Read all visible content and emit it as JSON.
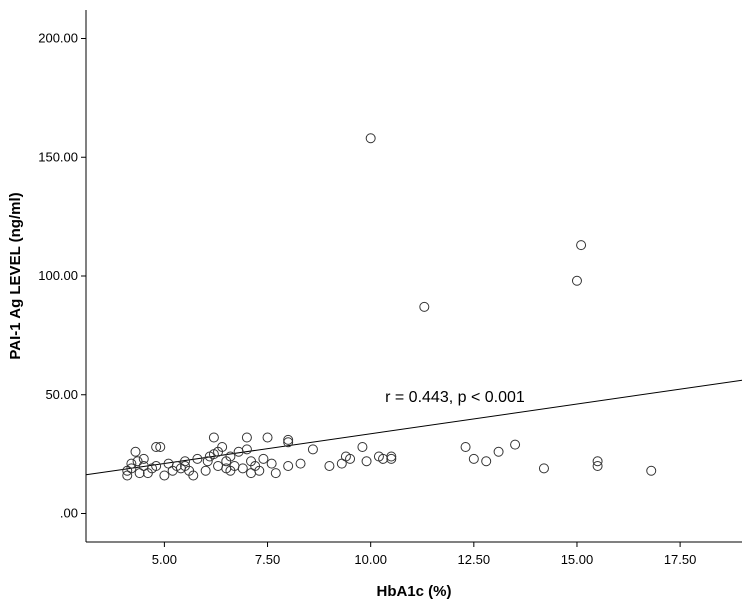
{
  "chart_data": {
    "type": "scatter",
    "xlabel": "HbA1c (%)",
    "ylabel": "PAI-1 Ag LEVEL (ng/ml)",
    "xlim": [
      3.1,
      19.0
    ],
    "ylim": [
      -12,
      212
    ],
    "xticks": [
      5.0,
      7.5,
      10.0,
      12.5,
      15.0,
      17.5
    ],
    "xtick_labels": [
      "5.00",
      "7.50",
      "10.00",
      "12.50",
      "15.00",
      "17.50"
    ],
    "yticks": [
      0,
      50,
      100,
      150,
      200
    ],
    "ytick_labels": [
      ".00",
      "50.00",
      "100.00",
      "150.00",
      "200.00"
    ],
    "grid": false,
    "legend": "none",
    "fit_line": {
      "x": [
        3.1,
        19.0
      ],
      "y": [
        16.3,
        56.1
      ]
    },
    "annotation": {
      "text": "r = 0.443, p < 0.001",
      "x": 10.35,
      "y": 47
    },
    "points": [
      {
        "x": 4.1,
        "y": 16
      },
      {
        "x": 4.1,
        "y": 18
      },
      {
        "x": 4.2,
        "y": 19
      },
      {
        "x": 4.2,
        "y": 21
      },
      {
        "x": 4.3,
        "y": 26
      },
      {
        "x": 4.35,
        "y": 22
      },
      {
        "x": 4.4,
        "y": 17
      },
      {
        "x": 4.5,
        "y": 20
      },
      {
        "x": 4.5,
        "y": 23
      },
      {
        "x": 4.6,
        "y": 17
      },
      {
        "x": 4.7,
        "y": 19
      },
      {
        "x": 4.8,
        "y": 20
      },
      {
        "x": 4.8,
        "y": 28
      },
      {
        "x": 4.9,
        "y": 28
      },
      {
        "x": 5.0,
        "y": 16
      },
      {
        "x": 5.1,
        "y": 21
      },
      {
        "x": 5.2,
        "y": 18
      },
      {
        "x": 5.3,
        "y": 20
      },
      {
        "x": 5.4,
        "y": 19
      },
      {
        "x": 5.5,
        "y": 20
      },
      {
        "x": 5.5,
        "y": 22
      },
      {
        "x": 5.6,
        "y": 18
      },
      {
        "x": 5.7,
        "y": 16
      },
      {
        "x": 5.8,
        "y": 23
      },
      {
        "x": 6.0,
        "y": 18
      },
      {
        "x": 6.05,
        "y": 22
      },
      {
        "x": 6.1,
        "y": 24
      },
      {
        "x": 6.2,
        "y": 25
      },
      {
        "x": 6.2,
        "y": 32
      },
      {
        "x": 6.3,
        "y": 26
      },
      {
        "x": 6.3,
        "y": 20
      },
      {
        "x": 6.4,
        "y": 28
      },
      {
        "x": 6.5,
        "y": 22
      },
      {
        "x": 6.5,
        "y": 19
      },
      {
        "x": 6.6,
        "y": 18
      },
      {
        "x": 6.6,
        "y": 24
      },
      {
        "x": 6.7,
        "y": 20
      },
      {
        "x": 6.8,
        "y": 26
      },
      {
        "x": 6.9,
        "y": 19
      },
      {
        "x": 7.0,
        "y": 32
      },
      {
        "x": 7.0,
        "y": 27
      },
      {
        "x": 7.1,
        "y": 22
      },
      {
        "x": 7.1,
        "y": 17
      },
      {
        "x": 7.2,
        "y": 20
      },
      {
        "x": 7.3,
        "y": 18
      },
      {
        "x": 7.4,
        "y": 23
      },
      {
        "x": 7.5,
        "y": 32
      },
      {
        "x": 7.6,
        "y": 21
      },
      {
        "x": 7.7,
        "y": 17
      },
      {
        "x": 8.0,
        "y": 20
      },
      {
        "x": 8.0,
        "y": 30
      },
      {
        "x": 8.0,
        "y": 31
      },
      {
        "x": 8.3,
        "y": 21
      },
      {
        "x": 8.6,
        "y": 27
      },
      {
        "x": 9.0,
        "y": 20
      },
      {
        "x": 9.3,
        "y": 21
      },
      {
        "x": 9.4,
        "y": 24
      },
      {
        "x": 9.5,
        "y": 23
      },
      {
        "x": 9.8,
        "y": 28
      },
      {
        "x": 9.9,
        "y": 22
      },
      {
        "x": 10.2,
        "y": 24
      },
      {
        "x": 10.3,
        "y": 23
      },
      {
        "x": 10.5,
        "y": 23
      },
      {
        "x": 10.5,
        "y": 24
      },
      {
        "x": 10.0,
        "y": 158
      },
      {
        "x": 11.3,
        "y": 87
      },
      {
        "x": 12.3,
        "y": 28
      },
      {
        "x": 12.5,
        "y": 23
      },
      {
        "x": 12.8,
        "y": 22
      },
      {
        "x": 13.1,
        "y": 26
      },
      {
        "x": 13.5,
        "y": 29
      },
      {
        "x": 14.2,
        "y": 19
      },
      {
        "x": 15.0,
        "y": 98
      },
      {
        "x": 15.1,
        "y": 113
      },
      {
        "x": 15.5,
        "y": 20
      },
      {
        "x": 15.5,
        "y": 22
      },
      {
        "x": 16.8,
        "y": 18
      }
    ]
  }
}
